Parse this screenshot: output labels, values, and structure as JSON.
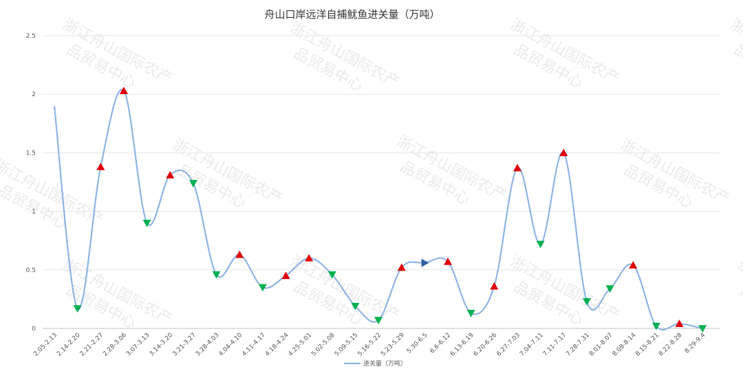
{
  "chart_data": {
    "type": "line",
    "title": "舟山口岸远洋自捕鱿鱼进关量（万吨）",
    "xlabel": "",
    "ylabel": "",
    "ylim": [
      0,
      2.5
    ],
    "yticks": [
      "0",
      "0.5",
      "1",
      "1.5",
      "2",
      "2.5"
    ],
    "grid": true,
    "legend": "bottom",
    "line_color": "#8eb4e3",
    "categories": [
      "2.05-2.13",
      "2.14-2.20",
      "2.21-2.27",
      "2.28-3.06",
      "3.07-3.13",
      "3.14-3.20",
      "3.21-3.27",
      "3.28-4.03",
      "4.04-4.10",
      "4.11-4.17",
      "4.18-4.24",
      "4.25-5.01",
      "5.02-5.08",
      "5.09-5.15",
      "5.16-5.22",
      "5.23-5.29",
      "5.30-6.5",
      "6.6-6.12",
      "6.13-6.19",
      "6.20-6.26",
      "6.27-7.03",
      "7.04-7.11",
      "7.11-7.17",
      "7.28-7.31",
      "8.01-8.07",
      "8.08-8.14",
      "8.15-8.21",
      "8.22-8.28",
      "8.29-9.4"
    ],
    "series": [
      {
        "name": "进关量（万吨）",
        "values": [
          1.9,
          0.17,
          1.38,
          2.03,
          0.9,
          1.31,
          1.24,
          0.46,
          0.63,
          0.35,
          0.45,
          0.6,
          0.46,
          0.19,
          0.07,
          0.52,
          0.56,
          0.57,
          0.13,
          0.36,
          1.37,
          0.72,
          1.5,
          0.23,
          0.34,
          0.54,
          0.02,
          0.04,
          0.0
        ],
        "markers": [
          "none",
          "down",
          "up",
          "up",
          "down",
          "up",
          "down",
          "down",
          "up",
          "down",
          "up",
          "up",
          "down",
          "down",
          "down",
          "up",
          "right",
          "up",
          "down",
          "up",
          "up",
          "down",
          "up",
          "down",
          "down",
          "up",
          "down",
          "up",
          "down"
        ]
      }
    ],
    "marker_colors": {
      "up": "#e00000",
      "down": "#00b050",
      "right": "#2e5fa3"
    },
    "watermark": "浙江舟山国际农产品贸易中心"
  }
}
